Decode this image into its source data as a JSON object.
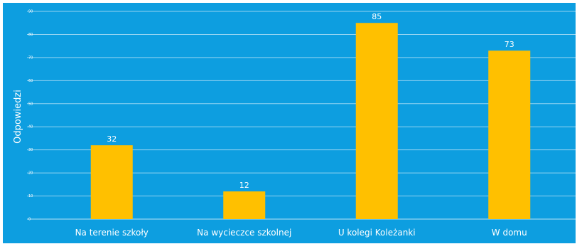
{
  "chart_data": {
    "type": "bar",
    "categories": [
      "Na terenie szkoły",
      "Na wycieczce szkolnej",
      "U kolegi Koleżanki",
      "W domu"
    ],
    "values": [
      32,
      12,
      85,
      73
    ],
    "ylabel": "Odpowiedzi",
    "ylim": [
      0,
      90
    ],
    "yticks": [
      0,
      10,
      20,
      30,
      40,
      50,
      60,
      70,
      80,
      90
    ],
    "grid": true,
    "colors": {
      "background": "#0d9ee0",
      "bar": "#ffc000",
      "text": "#ffffff"
    }
  }
}
